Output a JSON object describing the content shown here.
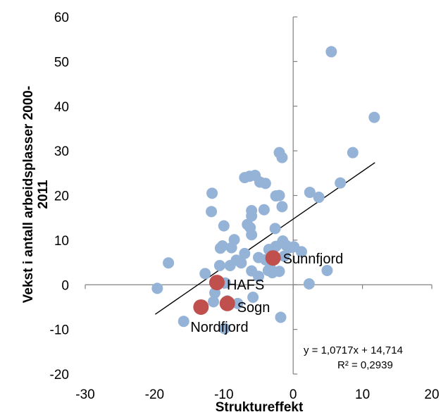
{
  "chart_data": {
    "type": "scatter",
    "xlabel": "Struktureffekt",
    "ylabel_line1": "Vekst i antall arbeidsplasser 2000-",
    "ylabel_line2": "2011",
    "xlim": [
      -30,
      20
    ],
    "ylim": [
      -20,
      60
    ],
    "xticks": [
      -30,
      -20,
      -10,
      0,
      10,
      20
    ],
    "yticks": [
      -20,
      -10,
      0,
      10,
      20,
      30,
      40,
      50,
      60
    ],
    "grid": false,
    "colors": {
      "points": "#95b3d7",
      "highlight": "#c0504d",
      "trendline": "#000000",
      "axis": "#808080"
    },
    "points": [
      [
        -19.6,
        -0.8
      ],
      [
        -18,
        4.9
      ],
      [
        -15.8,
        -8.2
      ],
      [
        -12.7,
        2.5
      ],
      [
        -11.5,
        -3.8
      ],
      [
        -11.2,
        0.5
      ],
      [
        -11.3,
        -1.8
      ],
      [
        -11.7,
        20.5
      ],
      [
        -11.8,
        16.4
      ],
      [
        -10.6,
        4.3
      ],
      [
        -10.5,
        8.2
      ],
      [
        -10.2,
        8.7
      ],
      [
        -10,
        13.2
      ],
      [
        -9.9,
        -9.8
      ],
      [
        -9.8,
        0.4
      ],
      [
        -9.5,
        -3.6
      ],
      [
        -9.1,
        4.3
      ],
      [
        -8.9,
        8.3
      ],
      [
        -8.5,
        10.1
      ],
      [
        -8.2,
        5.5
      ],
      [
        -8,
        -4.2
      ],
      [
        -7.5,
        4.9
      ],
      [
        -7,
        24
      ],
      [
        -7,
        7
      ],
      [
        -6.6,
        13.5
      ],
      [
        -6.2,
        12.8
      ],
      [
        -6.3,
        24.3
      ],
      [
        -6,
        16.6
      ],
      [
        -6,
        15.4
      ],
      [
        -6,
        11.2
      ],
      [
        -6,
        3.1
      ],
      [
        -5.8,
        -2.8
      ],
      [
        -5.5,
        24.5
      ],
      [
        -5,
        6.1
      ],
      [
        -5,
        1.9
      ],
      [
        -4.8,
        23
      ],
      [
        -4.2,
        16.8
      ],
      [
        -4,
        22.7
      ],
      [
        -4,
        5.6
      ],
      [
        -3.6,
        3.2
      ],
      [
        -3.5,
        7.9
      ],
      [
        -3.3,
        3.8
      ],
      [
        -3,
        2.7
      ],
      [
        -2.6,
        12.6
      ],
      [
        -2.5,
        19.9
      ],
      [
        -2.5,
        8.6
      ],
      [
        -2,
        29.6
      ],
      [
        -2,
        20
      ],
      [
        -2,
        3
      ],
      [
        -1.8,
        -7.3
      ],
      [
        -1.6,
        17.5
      ],
      [
        -1.6,
        28.5
      ],
      [
        -1.5,
        9.8
      ],
      [
        -1.3,
        6.4
      ],
      [
        -1,
        8.8
      ],
      [
        -0.5,
        8.3
      ],
      [
        0.1,
        8.5
      ],
      [
        1.2,
        7.4
      ],
      [
        2.3,
        0.2
      ],
      [
        2.4,
        20.7
      ],
      [
        3.7,
        19.6
      ],
      [
        4.9,
        3.2
      ],
      [
        5.5,
        52.2
      ],
      [
        6.8,
        22.8
      ],
      [
        8.6,
        29.6
      ],
      [
        11.7,
        37.5
      ]
    ],
    "highlighted": [
      {
        "name": "Sunnfjord",
        "x": -2.9,
        "y": 6
      },
      {
        "name": "HAFS",
        "x": -11,
        "y": 0.5
      },
      {
        "name": "Sogn",
        "x": -9.5,
        "y": -4.2
      },
      {
        "name": "Nordfjord",
        "x": -13.3,
        "y": -5
      }
    ],
    "trendline": {
      "slope": 1.0717,
      "intercept": 14.714,
      "x_range": [
        -19.9,
        11.8
      ]
    },
    "equation_text": "y = 1,0717x + 14,714",
    "r2_text": "R² = 0,2939"
  }
}
